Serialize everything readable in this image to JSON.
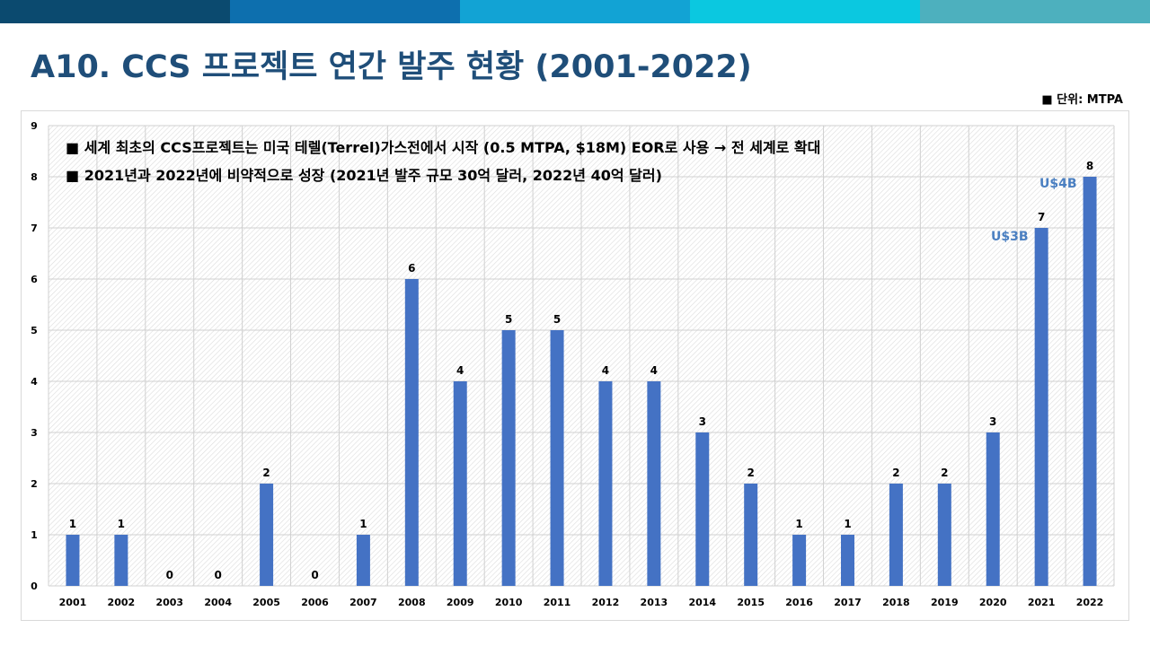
{
  "header": {
    "title": "A10. CCS 프로젝트 연간 발주 현황 (2001-2022)",
    "unit": "■ 단위: MTPA",
    "bar_colors": [
      "#0b4a6f",
      "#0d6fae",
      "#12a3d4",
      "#0bc8e0",
      "#4db0be"
    ]
  },
  "notes": [
    "■ 세계 최초의 CCS프로젝트는 미국 테렐(Terrel)가스전에서 시작 (0.5 MTPA, $18M) EOR로 사용 → 전 세계로 확대",
    "■ 2021년과 2022년에 비약적으로 성장 (2021년 발주 규모 30억 달러, 2022년 40억 달러)"
  ],
  "annotations": [
    {
      "text": "U$3B",
      "category": "2021"
    },
    {
      "text": "U$4B",
      "category": "2022"
    }
  ],
  "chart_data": {
    "type": "bar",
    "title": "",
    "xlabel": "",
    "ylabel": "",
    "categories": [
      "2001",
      "2002",
      "2003",
      "2004",
      "2005",
      "2006",
      "2007",
      "2008",
      "2009",
      "2010",
      "2011",
      "2012",
      "2013",
      "2014",
      "2015",
      "2016",
      "2017",
      "2018",
      "2019",
      "2020",
      "2021",
      "2022"
    ],
    "values": [
      1,
      1,
      0,
      0,
      2,
      0,
      1,
      6,
      4,
      5,
      5,
      4,
      4,
      3,
      2,
      1,
      1,
      2,
      2,
      3,
      7,
      8
    ],
    "ylim": [
      0,
      9
    ],
    "yticks": [
      0,
      1,
      2,
      3,
      4,
      5,
      6,
      7,
      8,
      9
    ],
    "grid": true,
    "bar_color": "#4472c4",
    "data_labels": true
  }
}
